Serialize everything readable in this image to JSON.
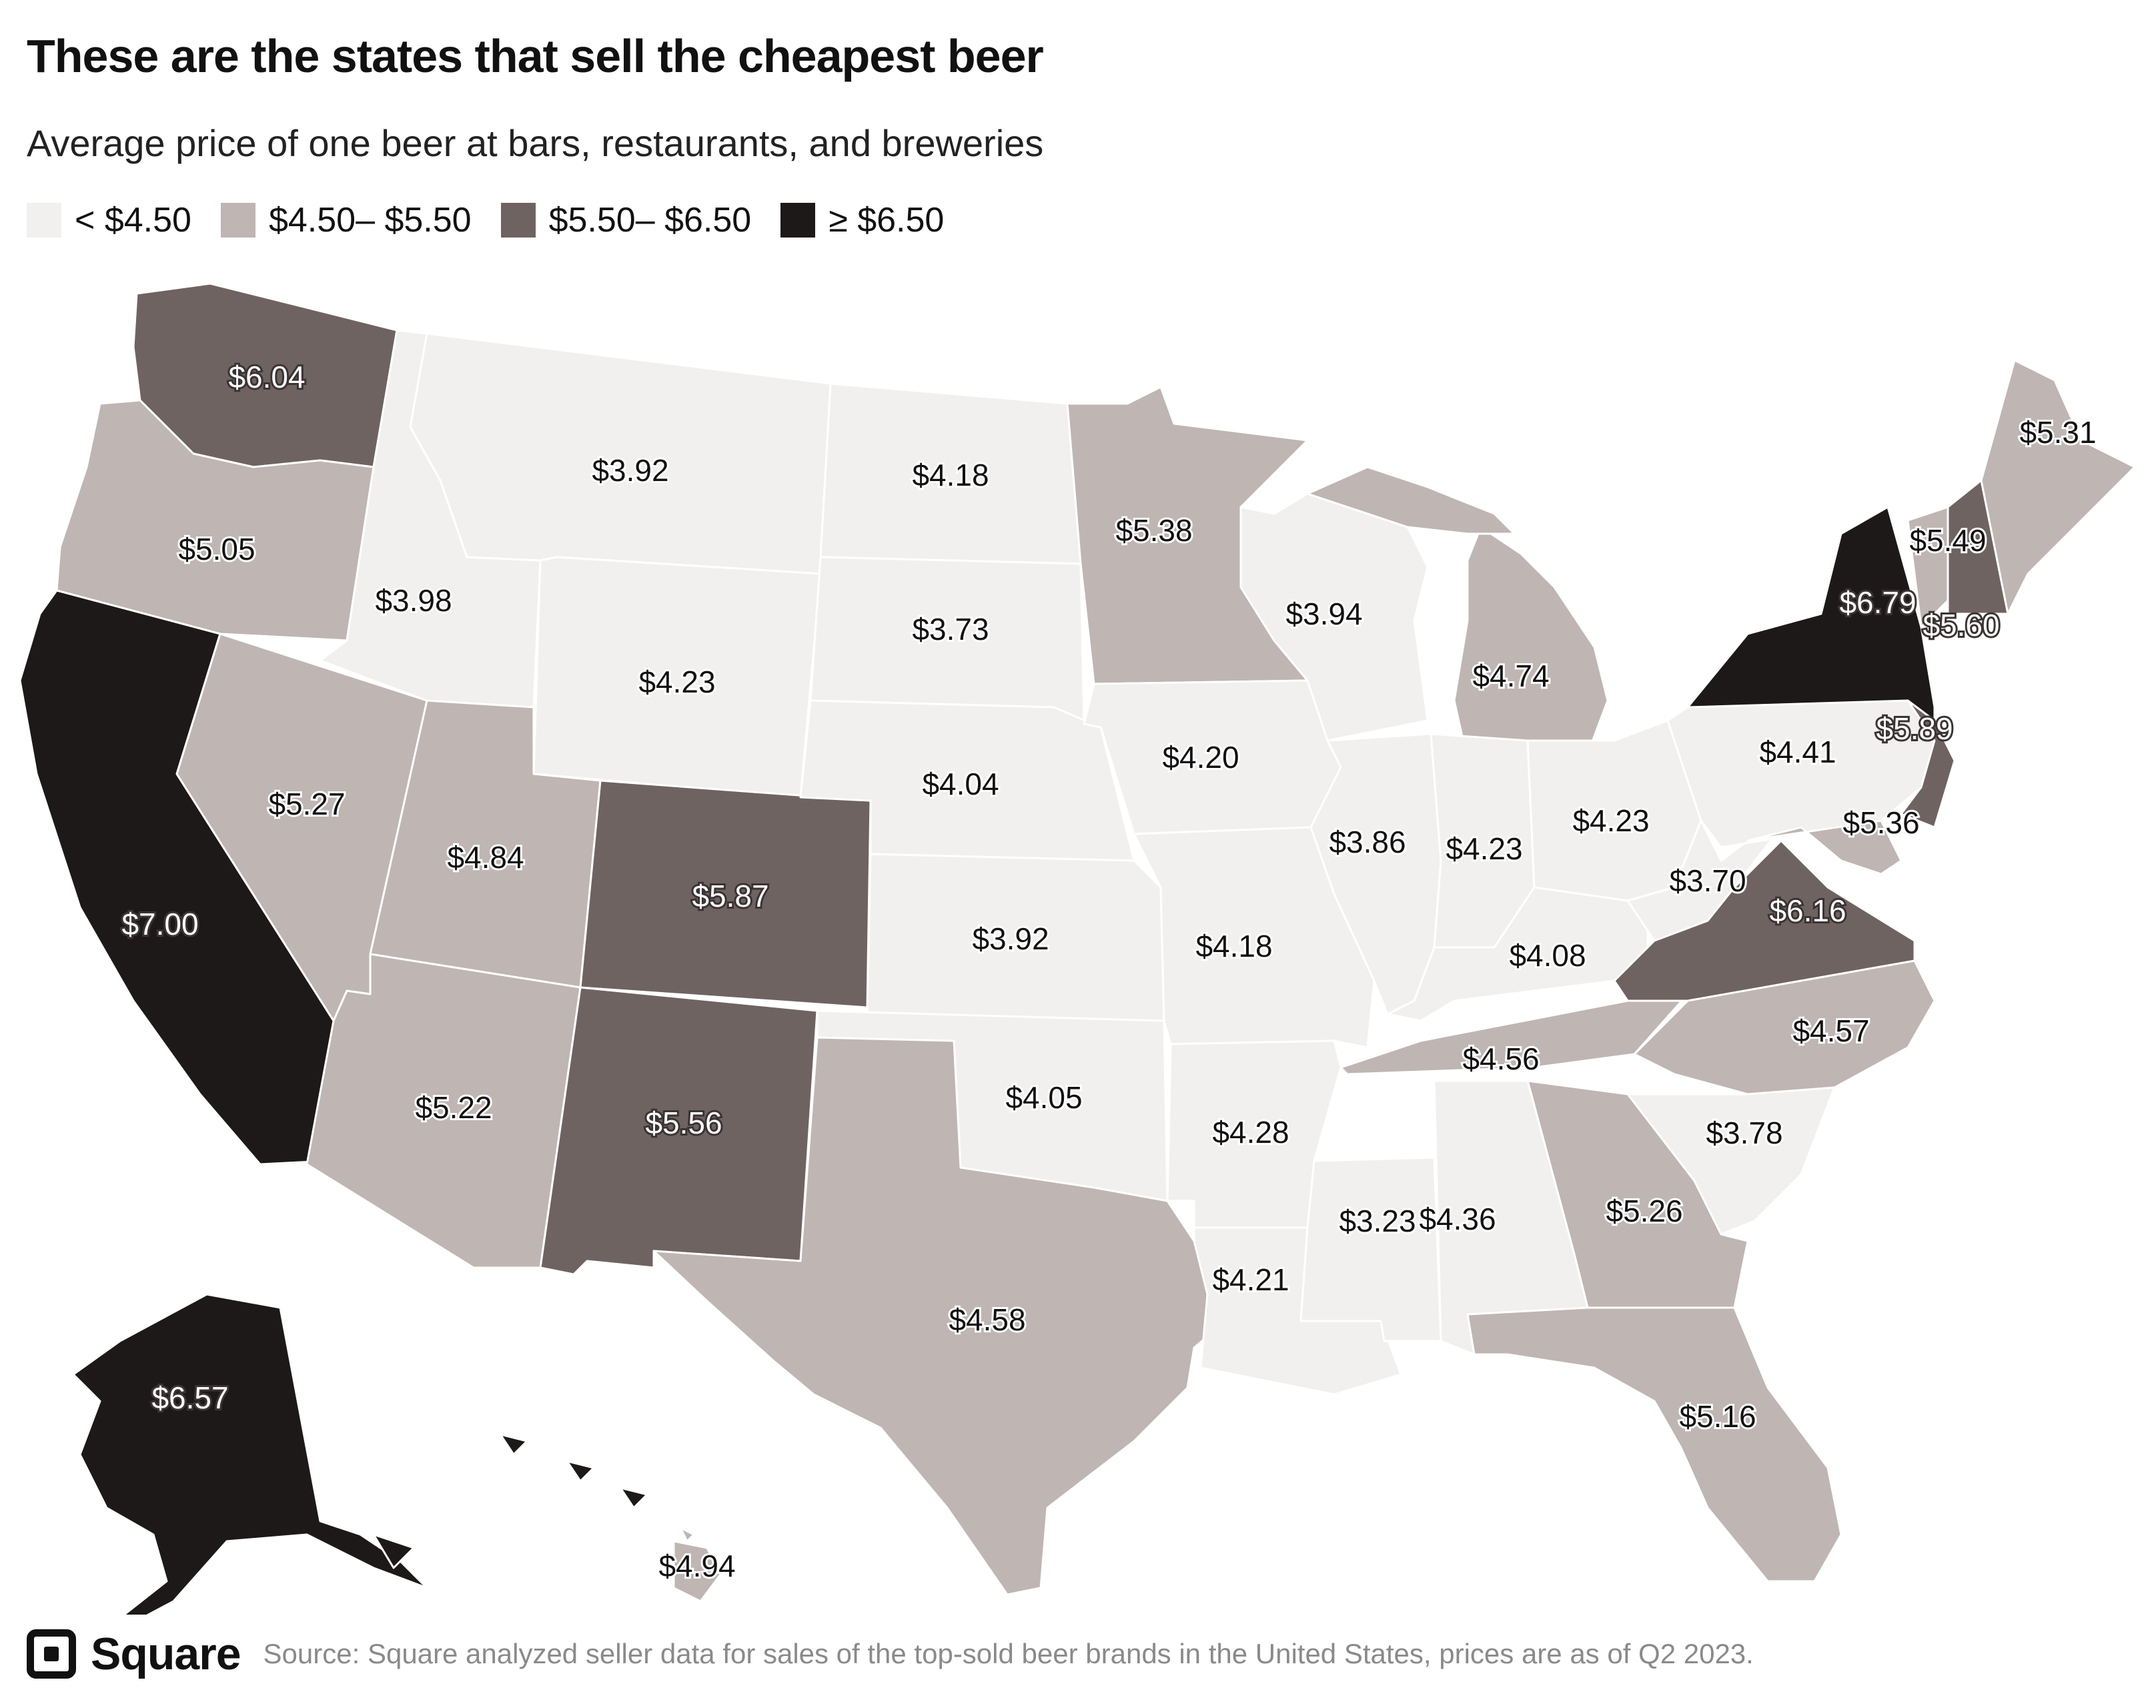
{
  "title": "These are the states that sell the cheapest beer",
  "subtitle": "Average price of one beer at bars, restaurants, and breweries",
  "legend": [
    {
      "label": "< $4.50",
      "color": "#f1f0ee"
    },
    {
      "label": "$4.50– $5.50",
      "color": "#bfb5b2"
    },
    {
      "label": "$5.50– $6.50",
      "color": "#6f6361"
    },
    {
      "label": "≥ $6.50",
      "color": "#1c1918"
    }
  ],
  "footer": {
    "brand": "Square",
    "source": "Source: Square analyzed seller data for sales of the top-sold beer brands in the United States, prices are as of Q2 2023."
  },
  "chart_data": {
    "type": "choropleth",
    "unit": "USD",
    "bins": [
      {
        "label": "< $4.50",
        "max": 4.5
      },
      {
        "label": "$4.50– $5.50",
        "min": 4.5,
        "max": 5.5
      },
      {
        "label": "$5.50– $6.50",
        "min": 5.5,
        "max": 6.5
      },
      {
        "label": "≥ $6.50",
        "min": 6.5
      }
    ],
    "states": [
      {
        "state": "WA",
        "value": 6.04,
        "label": "$6.04"
      },
      {
        "state": "OR",
        "value": 5.05,
        "label": "$5.05"
      },
      {
        "state": "CA",
        "value": 7.0,
        "label": "$7.00"
      },
      {
        "state": "NV",
        "value": 5.27,
        "label": "$5.27"
      },
      {
        "state": "ID",
        "value": 3.98,
        "label": "$3.98"
      },
      {
        "state": "MT",
        "value": 3.92,
        "label": "$3.92"
      },
      {
        "state": "WY",
        "value": 4.23,
        "label": "$4.23"
      },
      {
        "state": "UT",
        "value": 4.84,
        "label": "$4.84"
      },
      {
        "state": "AZ",
        "value": 5.22,
        "label": "$5.22"
      },
      {
        "state": "CO",
        "value": 5.87,
        "label": "$5.87"
      },
      {
        "state": "NM",
        "value": 5.56,
        "label": "$5.56"
      },
      {
        "state": "ND",
        "value": 4.18,
        "label": "$4.18"
      },
      {
        "state": "SD",
        "value": 3.73,
        "label": "$3.73"
      },
      {
        "state": "NE",
        "value": 4.04,
        "label": "$4.04"
      },
      {
        "state": "KS",
        "value": 3.92,
        "label": "$3.92"
      },
      {
        "state": "OK",
        "value": 4.05,
        "label": "$4.05"
      },
      {
        "state": "TX",
        "value": 4.58,
        "label": "$4.58"
      },
      {
        "state": "MN",
        "value": 5.38,
        "label": "$5.38"
      },
      {
        "state": "IA",
        "value": 4.2,
        "label": "$4.20"
      },
      {
        "state": "MO",
        "value": 4.18,
        "label": "$4.18"
      },
      {
        "state": "AR",
        "value": 4.28,
        "label": "$4.28"
      },
      {
        "state": "LA",
        "value": 4.21,
        "label": "$4.21"
      },
      {
        "state": "WI",
        "value": 3.94,
        "label": "$3.94"
      },
      {
        "state": "IL",
        "value": 3.86,
        "label": "$3.86"
      },
      {
        "state": "MI",
        "value": 4.74,
        "label": "$4.74"
      },
      {
        "state": "IN",
        "value": 4.23,
        "label": "$4.23"
      },
      {
        "state": "OH",
        "value": 4.23,
        "label": "$4.23"
      },
      {
        "state": "KY",
        "value": 4.08,
        "label": "$4.08"
      },
      {
        "state": "TN",
        "value": 4.56,
        "label": "$4.56"
      },
      {
        "state": "MS",
        "value": 3.23,
        "label": "$3.23"
      },
      {
        "state": "AL",
        "value": 4.36,
        "label": "$4.36"
      },
      {
        "state": "GA",
        "value": 5.26,
        "label": "$5.26"
      },
      {
        "state": "FL",
        "value": 5.16,
        "label": "$5.16"
      },
      {
        "state": "SC",
        "value": 3.78,
        "label": "$3.78"
      },
      {
        "state": "NC",
        "value": 4.57,
        "label": "$4.57"
      },
      {
        "state": "VA",
        "value": 6.16,
        "label": "$6.16"
      },
      {
        "state": "WV",
        "value": 3.7,
        "label": "$3.70"
      },
      {
        "state": "PA",
        "value": 4.41,
        "label": "$4.41"
      },
      {
        "state": "NY",
        "value": 6.79,
        "label": "$6.79"
      },
      {
        "state": "NJ",
        "value": 5.89,
        "label": "$5.89"
      },
      {
        "state": "MD",
        "value": 5.36,
        "label": "$5.36"
      },
      {
        "state": "VT",
        "value": 5.49,
        "label": "$5.49"
      },
      {
        "state": "NH",
        "value": 5.6,
        "label": "$5.60"
      },
      {
        "state": "ME",
        "value": 5.31,
        "label": "$5.31"
      },
      {
        "state": "AK",
        "value": 6.57,
        "label": "$6.57"
      },
      {
        "state": "HI",
        "value": 4.94,
        "label": "$4.94"
      }
    ]
  }
}
